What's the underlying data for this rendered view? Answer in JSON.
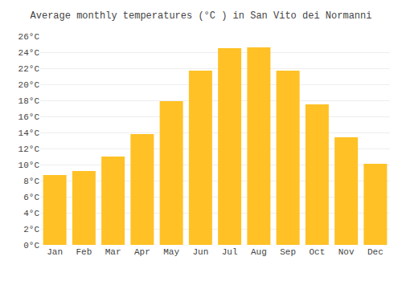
{
  "chart_data": {
    "type": "bar",
    "title": "Average monthly temperatures (°C ) in San Vito dei Normanni",
    "categories": [
      "Jan",
      "Feb",
      "Mar",
      "Apr",
      "May",
      "Jun",
      "Jul",
      "Aug",
      "Sep",
      "Oct",
      "Nov",
      "Dec"
    ],
    "values": [
      8.7,
      9.2,
      11.0,
      13.8,
      17.9,
      21.7,
      24.5,
      24.6,
      21.7,
      17.5,
      13.4,
      10.1
    ],
    "color": "#FFC125",
    "ylim": [
      0,
      26
    ],
    "yticks": [
      {
        "value": 0,
        "label": "0°C"
      },
      {
        "value": 2,
        "label": "2°C"
      },
      {
        "value": 4,
        "label": "4°C"
      },
      {
        "value": 6,
        "label": "6°C"
      },
      {
        "value": 8,
        "label": "8°C"
      },
      {
        "value": 10,
        "label": "10°C"
      },
      {
        "value": 12,
        "label": "12°C"
      },
      {
        "value": 14,
        "label": "14°C"
      },
      {
        "value": 16,
        "label": "16°C"
      },
      {
        "value": 18,
        "label": "18°C"
      },
      {
        "value": 20,
        "label": "20°C"
      },
      {
        "value": 22,
        "label": "22°C"
      },
      {
        "value": 24,
        "label": "24°C"
      },
      {
        "value": 26,
        "label": "26°C"
      }
    ],
    "grid": true
  }
}
